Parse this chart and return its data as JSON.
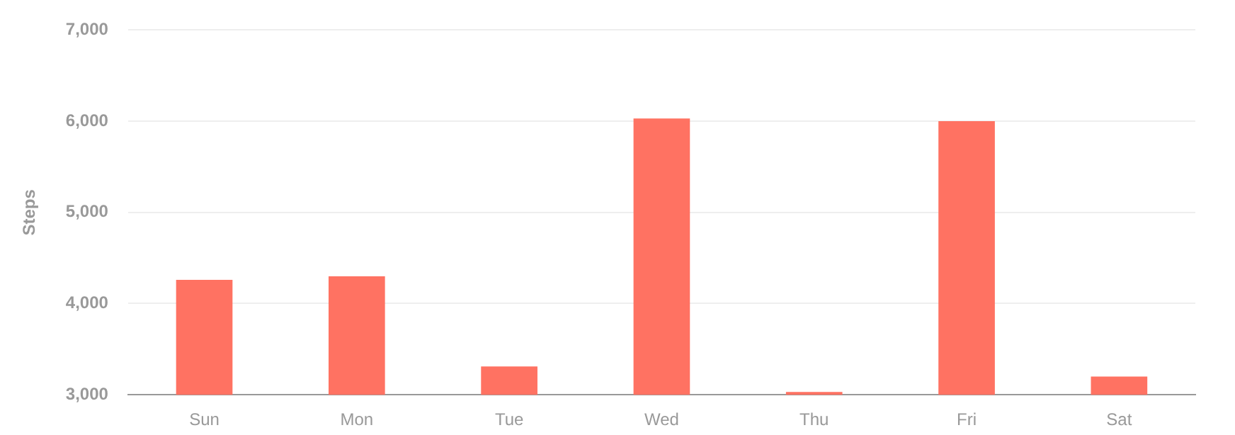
{
  "chart_data": {
    "type": "bar",
    "ylabel": "Steps",
    "categories": [
      "Sun",
      "Mon",
      "Tue",
      "Wed",
      "Thu",
      "Fri",
      "Sat"
    ],
    "values": [
      4260,
      4300,
      3310,
      6030,
      3030,
      6000,
      3200
    ],
    "color": "#ff7262",
    "ylim": [
      3000,
      7000
    ],
    "yticks": [
      {
        "value": 3000,
        "label": "3,000"
      },
      {
        "value": 4000,
        "label": "4,000"
      },
      {
        "value": 5000,
        "label": "5,000"
      },
      {
        "value": 6000,
        "label": "6,000"
      },
      {
        "value": 7000,
        "label": "7,000"
      }
    ],
    "grid": "y",
    "legend": false
  }
}
